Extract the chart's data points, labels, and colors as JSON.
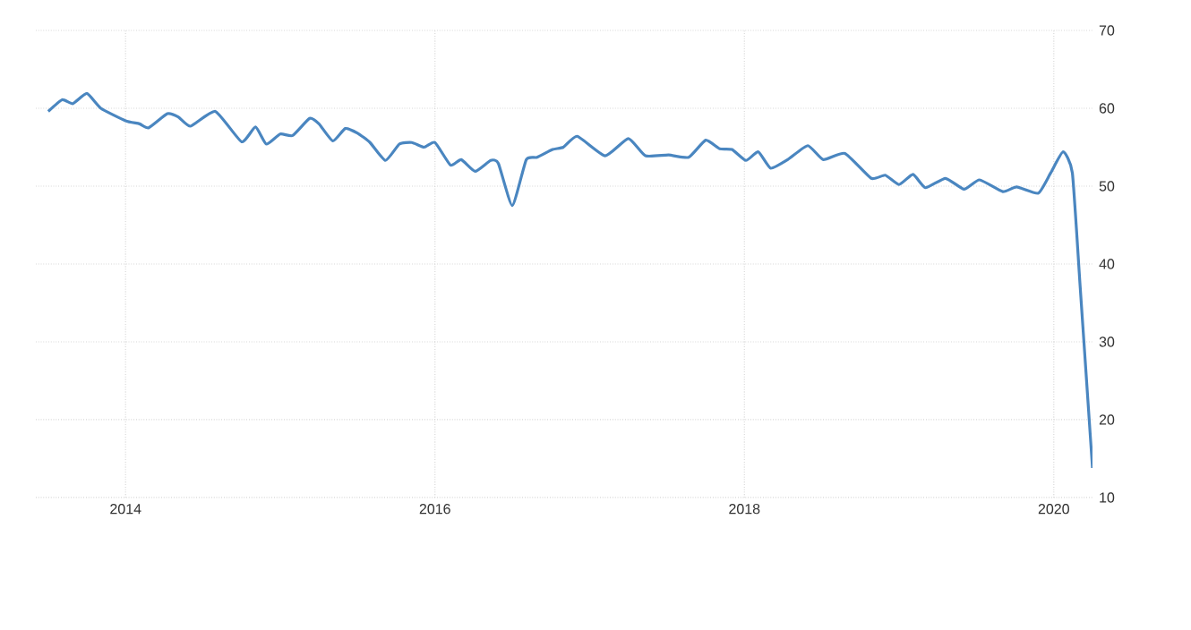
{
  "chart_data": {
    "type": "line",
    "grid": true,
    "xlim": [
      2013.42,
      2020.25
    ],
    "xticks": [
      2014,
      2016,
      2018,
      2020
    ],
    "ylim": [
      10,
      70
    ],
    "yticks": [
      10,
      20,
      30,
      40,
      50,
      60,
      70
    ],
    "x": [
      2013.5,
      2013.59,
      2013.66,
      2013.75,
      2013.84,
      2014.0,
      2014.09,
      2014.15,
      2014.27,
      2014.34,
      2014.42,
      2014.58,
      2014.75,
      2014.84,
      2014.91,
      2015.0,
      2015.08,
      2015.19,
      2015.25,
      2015.34,
      2015.42,
      2015.5,
      2015.58,
      2015.68,
      2015.77,
      2015.85,
      2015.93,
      2016.0,
      2016.1,
      2016.17,
      2016.26,
      2016.36,
      2016.41,
      2016.5,
      2016.59,
      2016.66,
      2016.76,
      2016.83,
      2016.92,
      2017.1,
      2017.25,
      2017.36,
      2017.51,
      2017.64,
      2017.75,
      2017.84,
      2017.92,
      2018.01,
      2018.09,
      2018.17,
      2018.28,
      2018.41,
      2018.51,
      2018.65,
      2018.82,
      2018.91,
      2019.0,
      2019.09,
      2019.17,
      2019.3,
      2019.42,
      2019.52,
      2019.67,
      2019.76,
      2019.9,
      2019.98,
      2020.06,
      2020.12,
      2020.17,
      2020.25
    ],
    "series": [
      {
        "color": "#4a86c0",
        "values": [
          59.6,
          61.1,
          60.6,
          61.9,
          60.0,
          58.4,
          58.0,
          57.5,
          59.3,
          58.9,
          57.7,
          59.6,
          55.7,
          57.6,
          55.4,
          56.7,
          56.5,
          58.7,
          58.0,
          55.8,
          57.4,
          56.8,
          55.6,
          53.3,
          55.4,
          55.6,
          55.0,
          55.6,
          52.7,
          53.4,
          51.9,
          53.3,
          52.9,
          47.5,
          53.4,
          53.7,
          54.7,
          55.0,
          56.4,
          53.9,
          56.1,
          53.9,
          54.0,
          53.7,
          55.9,
          54.8,
          54.7,
          53.3,
          54.4,
          52.3,
          53.4,
          55.2,
          53.4,
          54.2,
          51.0,
          51.4,
          50.2,
          51.5,
          49.8,
          51.0,
          49.6,
          50.8,
          49.3,
          49.9,
          49.1,
          51.7,
          54.4,
          51.7,
          37.2,
          13.8
        ]
      }
    ]
  }
}
